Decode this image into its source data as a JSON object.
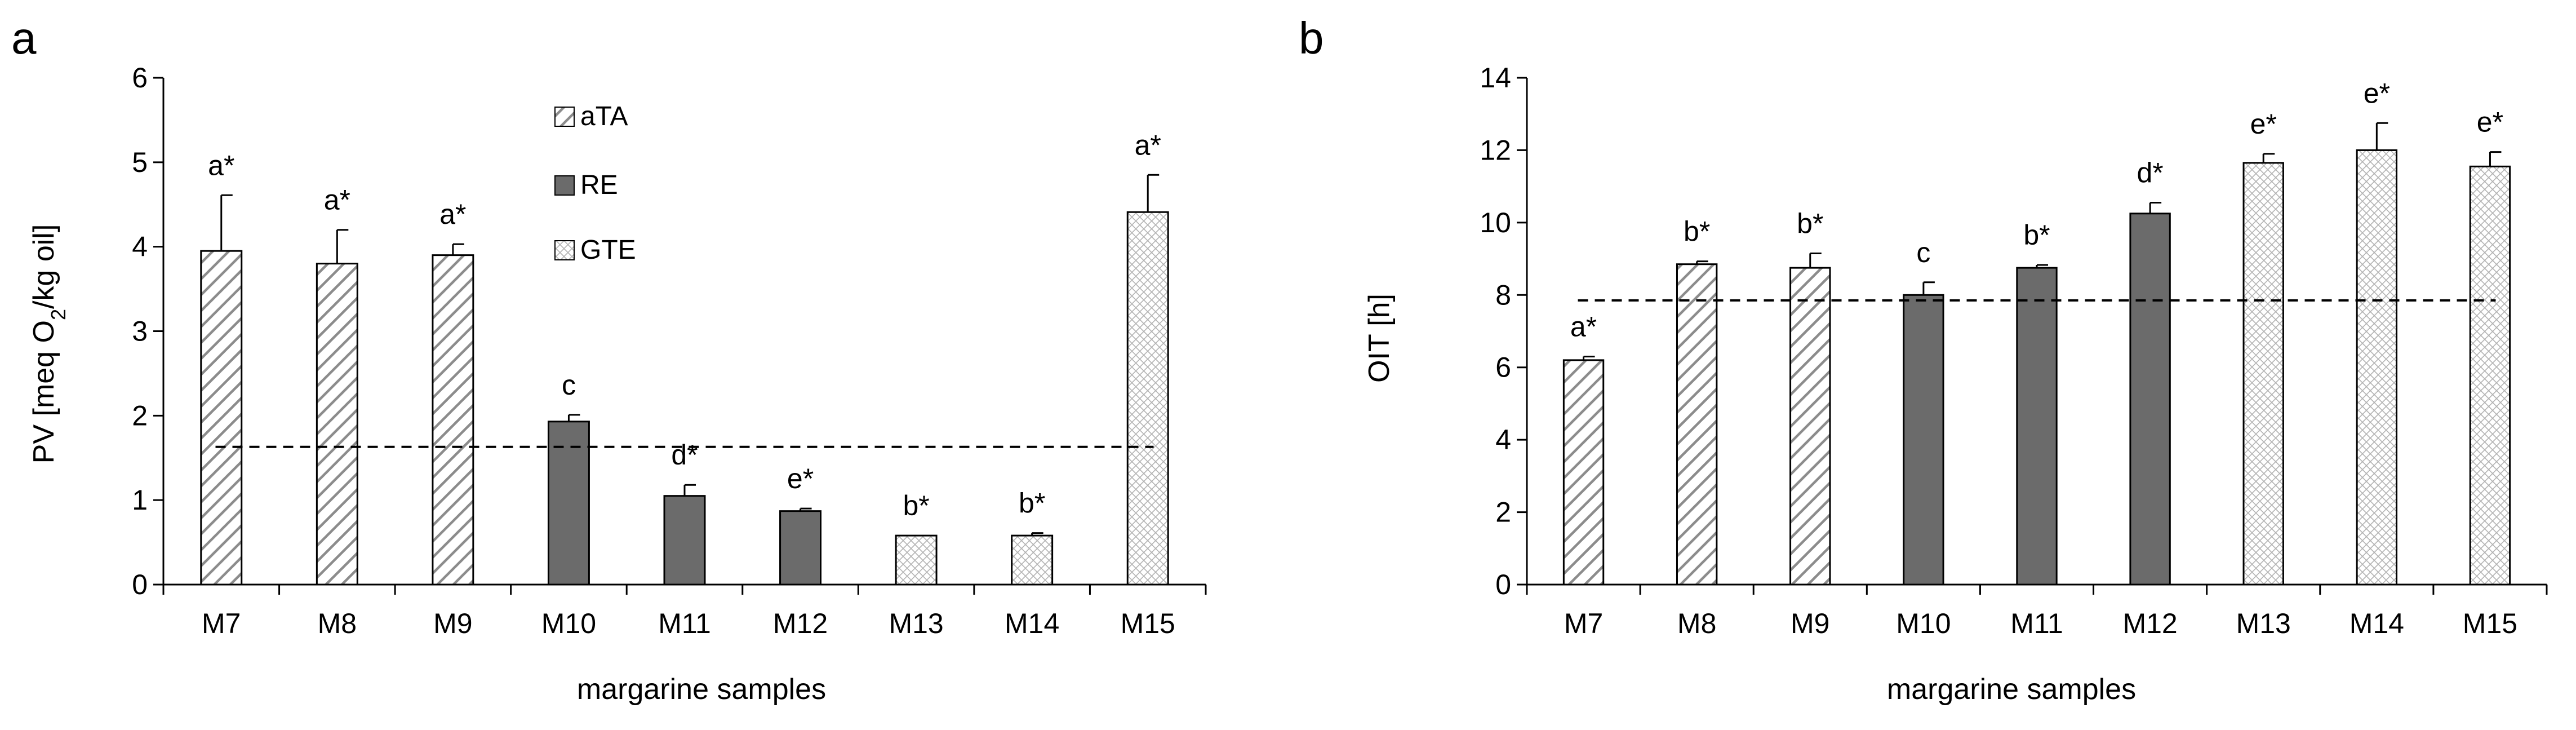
{
  "legend": {
    "items": [
      {
        "name": "aTA",
        "pattern": "diag",
        "color": "#ffffff"
      },
      {
        "name": "RE",
        "pattern": "solid",
        "color": "#6b6b6b"
      },
      {
        "name": "GTE",
        "pattern": "cross",
        "color": "#ffffff"
      }
    ]
  },
  "colors": {
    "bar_stroke": "#000000",
    "hatch": "#8c8c8c",
    "solid": "#6b6b6b",
    "reference": "#000000"
  },
  "chart_data": [
    {
      "type": "bar",
      "panel_label": "a",
      "categories": [
        "M7",
        "M8",
        "M9",
        "M10",
        "M11",
        "M12",
        "M13",
        "M14",
        "M15"
      ],
      "groups": [
        "aTA",
        "aTA",
        "aTA",
        "RE",
        "RE",
        "RE",
        "GTE",
        "GTE",
        "GTE"
      ],
      "values": [
        3.95,
        3.8,
        3.9,
        1.93,
        1.05,
        0.87,
        0.58,
        0.58,
        4.41
      ],
      "errors": [
        0.66,
        0.4,
        0.13,
        0.08,
        0.13,
        0.03,
        0.0,
        0.03,
        0.44
      ],
      "annotations": [
        "a*",
        "a*",
        "a*",
        "c",
        "d*",
        "e*",
        "b*",
        "b*",
        "a*"
      ],
      "reference_line": 1.63,
      "ylabel_main": "PV [meq O",
      "ylabel_sub": "2",
      "ylabel_end": "/kg oil]",
      "xlabel": "margarine samples",
      "ylim": [
        0,
        6
      ],
      "yticks": [
        0,
        1,
        2,
        3,
        4,
        5,
        6
      ],
      "legend_position": "top-center",
      "grid": false
    },
    {
      "type": "bar",
      "panel_label": "b",
      "categories": [
        "M7",
        "M8",
        "M9",
        "M10",
        "M11",
        "M12",
        "M13",
        "M14",
        "M15"
      ],
      "groups": [
        "aTA",
        "aTA",
        "aTA",
        "RE",
        "RE",
        "RE",
        "GTE",
        "GTE",
        "GTE"
      ],
      "values": [
        6.2,
        8.85,
        8.75,
        8.0,
        8.75,
        10.25,
        11.65,
        12.0,
        11.55
      ],
      "errors": [
        0.1,
        0.08,
        0.4,
        0.35,
        0.08,
        0.3,
        0.25,
        0.75,
        0.4
      ],
      "annotations": [
        "a*",
        "b*",
        "b*",
        "c",
        "b*",
        "d*",
        "e*",
        "e*",
        "e*"
      ],
      "reference_line": 7.85,
      "ylabel": "OIT [h]",
      "xlabel": "margarine samples",
      "ylim": [
        0,
        14
      ],
      "yticks": [
        0,
        2,
        4,
        6,
        8,
        10,
        12,
        14
      ],
      "grid": false
    }
  ]
}
